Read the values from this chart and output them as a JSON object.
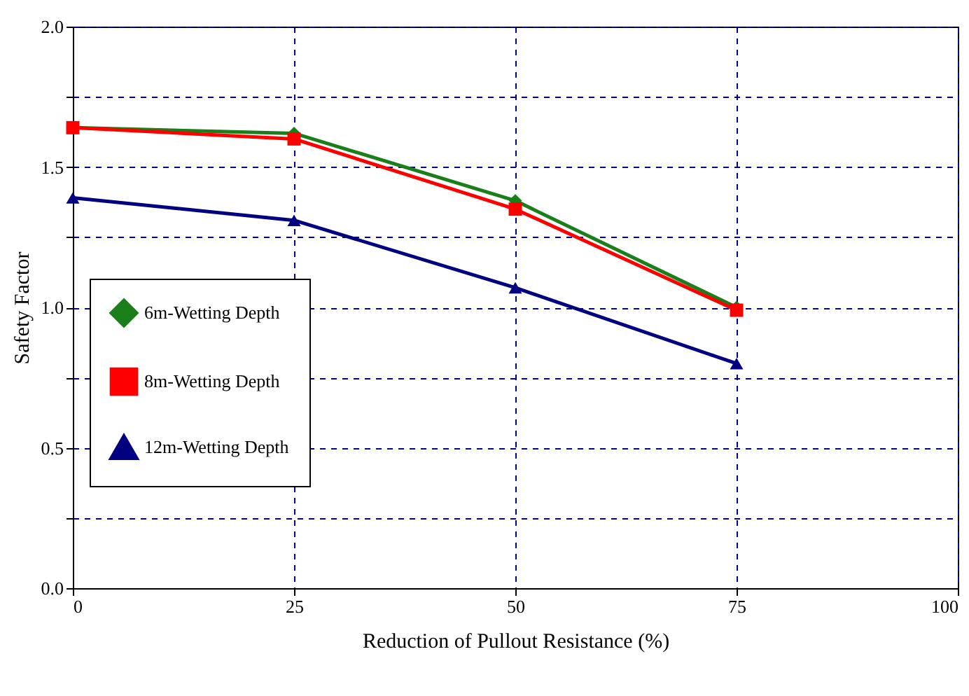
{
  "chart_data": {
    "type": "line",
    "xlabel": "Reduction of Pullout Resistance (%)",
    "ylabel": "Safety Factor",
    "x": [
      0,
      25,
      50,
      75
    ],
    "series": [
      {
        "name": "6m-Wetting Depth",
        "color": "#1a7f1a",
        "marker": "diamond",
        "values": [
          1.64,
          1.62,
          1.38,
          1.0
        ]
      },
      {
        "name": "8m-Wetting Depth",
        "color": "#ff0000",
        "marker": "square",
        "values": [
          1.64,
          1.6,
          1.35,
          0.99
        ]
      },
      {
        "name": "12m-Wetting Depth",
        "color": "#000080",
        "marker": "triangle",
        "values": [
          1.39,
          1.31,
          1.07,
          0.8
        ]
      }
    ],
    "xlim": [
      0,
      100
    ],
    "xticks": [
      0,
      25,
      50,
      75,
      100
    ],
    "ylim": [
      0,
      2
    ],
    "yticks": [
      {
        "value": 0,
        "label": "0.0"
      },
      {
        "value": 0.25,
        "label": null
      },
      {
        "value": 0.5,
        "label": "0.5"
      },
      {
        "value": 0.75,
        "label": null
      },
      {
        "value": 1,
        "label": "1.0"
      },
      {
        "value": 1.25,
        "label": null
      },
      {
        "value": 1.5,
        "label": "1.5"
      },
      {
        "value": 1.75,
        "label": null
      },
      {
        "value": 2,
        "label": "2.0"
      }
    ],
    "grid": true,
    "legend": "left",
    "line_style": "solid"
  }
}
